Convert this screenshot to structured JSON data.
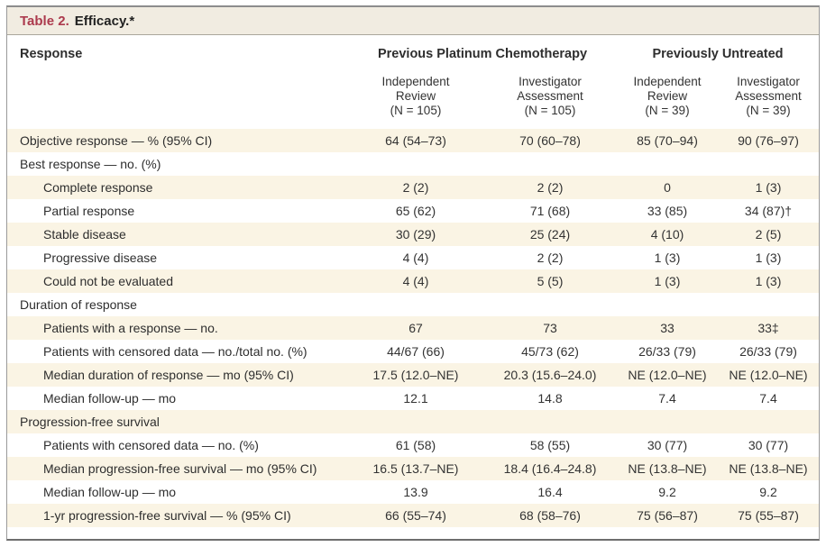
{
  "table": {
    "title_label": "Table 2.",
    "title_text": "Efficacy.*",
    "col1_header": "Response",
    "groups": [
      {
        "label": "Previous Platinum Chemotherapy"
      },
      {
        "label": "Previously Untreated"
      }
    ],
    "columns": [
      {
        "line1": "Independent",
        "line2": "Review",
        "line3": "(N = 105)"
      },
      {
        "line1": "Investigator",
        "line2": "Assessment",
        "line3": "(N = 105)"
      },
      {
        "line1": "Independent",
        "line2": "Review",
        "line3": "(N = 39)"
      },
      {
        "line1": "Investigator",
        "line2": "Assessment",
        "line3": "(N = 39)"
      }
    ],
    "rows": [
      {
        "label": "Objective response — % (95% CI)",
        "indent": false,
        "values": [
          "64 (54–73)",
          "70 (60–78)",
          "85 (70–94)",
          "90 (76–97)"
        ]
      },
      {
        "label": "Best response — no. (%)",
        "indent": false,
        "values": [
          "",
          "",
          "",
          ""
        ]
      },
      {
        "label": "Complete response",
        "indent": true,
        "values": [
          "2 (2)",
          "2 (2)",
          "0",
          "1 (3)"
        ]
      },
      {
        "label": "Partial response",
        "indent": true,
        "values": [
          "65 (62)",
          "71 (68)",
          "33 (85)",
          "34 (87)†"
        ]
      },
      {
        "label": "Stable disease",
        "indent": true,
        "values": [
          "30 (29)",
          "25 (24)",
          "4 (10)",
          "2 (5)"
        ]
      },
      {
        "label": "Progressive disease",
        "indent": true,
        "values": [
          "4 (4)",
          "2 (2)",
          "1 (3)",
          "1 (3)"
        ]
      },
      {
        "label": "Could not be evaluated",
        "indent": true,
        "values": [
          "4 (4)",
          "5 (5)",
          "1 (3)",
          "1 (3)"
        ]
      },
      {
        "label": "Duration of response",
        "indent": false,
        "values": [
          "",
          "",
          "",
          ""
        ]
      },
      {
        "label": "Patients with a response — no.",
        "indent": true,
        "values": [
          "67",
          "73",
          "33",
          "33‡"
        ]
      },
      {
        "label": "Patients with censored data — no./total no. (%)",
        "indent": true,
        "values": [
          "44/67 (66)",
          "45/73 (62)",
          "26/33 (79)",
          "26/33 (79)"
        ]
      },
      {
        "label": "Median duration of response — mo (95% CI)",
        "indent": true,
        "values": [
          "17.5 (12.0–NE)",
          "20.3 (15.6–24.0)",
          "NE (12.0–NE)",
          "NE (12.0–NE)"
        ]
      },
      {
        "label": "Median follow-up — mo",
        "indent": true,
        "values": [
          "12.1",
          "14.8",
          "7.4",
          "7.4"
        ]
      },
      {
        "label": "Progression-free survival",
        "indent": false,
        "values": [
          "",
          "",
          "",
          ""
        ]
      },
      {
        "label": "Patients with censored data — no. (%)",
        "indent": true,
        "values": [
          "61 (58)",
          "58 (55)",
          "30 (77)",
          "30 (77)"
        ]
      },
      {
        "label": "Median progression-free survival — mo (95% CI)",
        "indent": true,
        "values": [
          "16.5 (13.7–NE)",
          "18.4 (16.4–24.8)",
          "NE (13.8–NE)",
          "NE (13.8–NE)"
        ]
      },
      {
        "label": "Median follow-up — mo",
        "indent": true,
        "values": [
          "13.9",
          "16.4",
          "9.2",
          "9.2"
        ]
      },
      {
        "label": "1-yr progression-free survival — % (95% CI)",
        "indent": true,
        "values": [
          "66 (55–74)",
          "68 (58–76)",
          "75 (56–87)",
          "75 (55–87)"
        ]
      }
    ],
    "colors": {
      "accent_red": "#ac3a4d",
      "stripe_cream": "#faf4e4",
      "title_bar_bg": "#f1ece1",
      "border_gray": "#8d8d8d",
      "text": "#2e2e2e"
    }
  }
}
